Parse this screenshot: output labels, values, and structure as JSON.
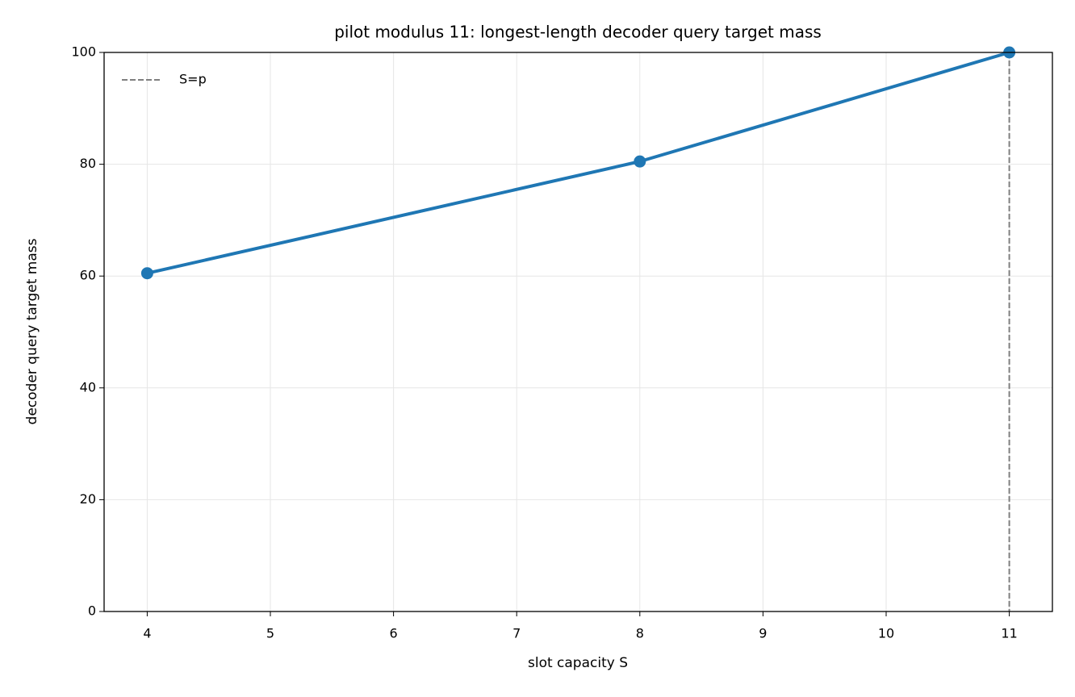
{
  "chart_data": {
    "type": "line",
    "title": "pilot modulus 11: longest-length decoder query target mass",
    "xlabel": "slot capacity S",
    "ylabel": "decoder query target mass",
    "x": [
      4,
      8,
      11
    ],
    "series": [
      {
        "name": null,
        "color": "#1f77b4",
        "values": [
          60.5,
          80.5,
          100
        ]
      }
    ],
    "reference_line": {
      "x": 11,
      "name": "S=p",
      "color": "#7f7f7f",
      "style": "dashed"
    },
    "xlim": [
      3.65,
      11.35
    ],
    "xticks": [
      4,
      5,
      6,
      7,
      8,
      9,
      10,
      11
    ],
    "ylim": [
      0,
      100
    ],
    "yticks": [
      0,
      20,
      40,
      60,
      80,
      100
    ],
    "grid": true,
    "legend": "upper-left"
  }
}
